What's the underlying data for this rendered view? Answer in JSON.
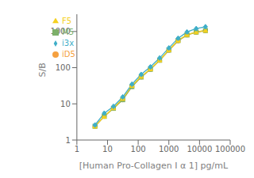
{
  "chart_data": {
    "type": "line",
    "xlabel": "[Human Pro-Collagen I α 1] pg/mL",
    "ylabel": "S/B",
    "x": [
      3.9,
      7.8,
      15.6,
      31.25,
      62.5,
      125,
      250,
      500,
      1000,
      2000,
      3900,
      7800,
      15600
    ],
    "series": [
      {
        "name": "iD5",
        "color": "#F5A040",
        "marker": "circle",
        "values": [
          2.4,
          4.5,
          7.5,
          13.0,
          30.0,
          55.0,
          90.0,
          160.0,
          300.0,
          550.0,
          800.0,
          950.0,
          1050.0
        ]
      },
      {
        "name": "M5",
        "color": "#7DB06A",
        "marker": "square",
        "values": [
          2.4,
          4.5,
          7.5,
          13.0,
          30.0,
          55.0,
          90.0,
          160.0,
          305.0,
          560.0,
          800.0,
          960.0,
          1060.0
        ]
      },
      {
        "name": "F5",
        "color": "#F5D020",
        "marker": "triangle",
        "values": [
          2.4,
          4.5,
          7.7,
          14.0,
          32.0,
          57.0,
          92.0,
          162.0,
          310.0,
          570.0,
          820.0,
          970.0,
          1070.0
        ]
      },
      {
        "name": "i3x",
        "color": "#3EAEC8",
        "marker": "diamond",
        "values": [
          2.6,
          5.5,
          8.5,
          15.5,
          35.0,
          65.0,
          105.0,
          185.0,
          350.0,
          650.0,
          970.0,
          1200.0,
          1350.0
        ]
      }
    ],
    "log": true,
    "xlim": [
      1,
      100000
    ],
    "ylim": [
      1,
      3000
    ],
    "xticks": [
      1,
      10,
      100,
      1000,
      10000,
      100000
    ],
    "yticks": [
      1,
      10,
      100,
      1000
    ],
    "grid": false,
    "legend": "upper left"
  }
}
